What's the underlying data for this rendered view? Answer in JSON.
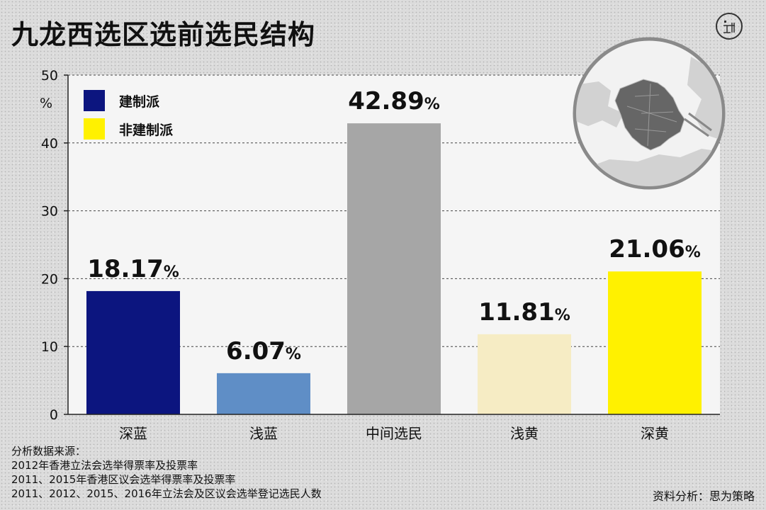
{
  "title": "九龙西选区选前选民结构",
  "chart_data": {
    "type": "bar",
    "title": "九龙西选区选前选民结构",
    "categories": [
      "深蓝",
      "浅蓝",
      "中间选民",
      "浅黄",
      "深黄"
    ],
    "values": [
      18.17,
      6.07,
      42.89,
      11.81,
      21.06
    ],
    "value_labels": [
      "18.17",
      "6.07",
      "42.89",
      "11.81",
      "21.06"
    ],
    "value_suffix": "%",
    "bar_colors": [
      "#0c157f",
      "#5f8ec6",
      "#a6a6a6",
      "#f6ecc4",
      "#fff100"
    ],
    "ylim": [
      0,
      50
    ],
    "yticks": [
      0,
      10,
      20,
      30,
      40,
      50
    ],
    "yunit": "%",
    "grid": true,
    "legend_position": "top-left",
    "legend": [
      {
        "label": "建制派",
        "color": "#0c157f"
      },
      {
        "label": "非建制派",
        "color": "#fff100"
      }
    ]
  },
  "sources": {
    "heading": "分析数据来源：",
    "lines": [
      "2012年香港立法会选举得票率及投票率",
      "2011、2015年香港区议会选举得票率及投票率",
      "2011、2012、2015、2016年立法会及区议会选举登记选民人数"
    ]
  },
  "credit": "资料分析：思为策略",
  "logo_icon": "duan-media-logo-icon",
  "map_icon": "kowloon-west-map-icon"
}
